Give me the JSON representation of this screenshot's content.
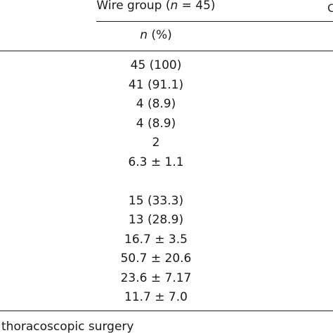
{
  "header": {
    "group_prefix": "Wire group (",
    "group_n": "n",
    "group_suffix": " = 45)",
    "col_n": "n",
    "col_pct": " (%)",
    "clipped_next_col_glyph": "C"
  },
  "rows": [
    "45 (100)",
    "41 (91.1)",
    "4 (8.9)",
    "4 (8.9)",
    "2",
    "6.3 ± 1.1",
    "",
    "15 (33.3)",
    "13 (28.9)",
    "16.7 ± 3.5",
    "50.7 ± 20.6",
    "23.6 ± 7.17",
    "11.7 ± 7.0"
  ],
  "footnote": "thoracoscopic surgery"
}
